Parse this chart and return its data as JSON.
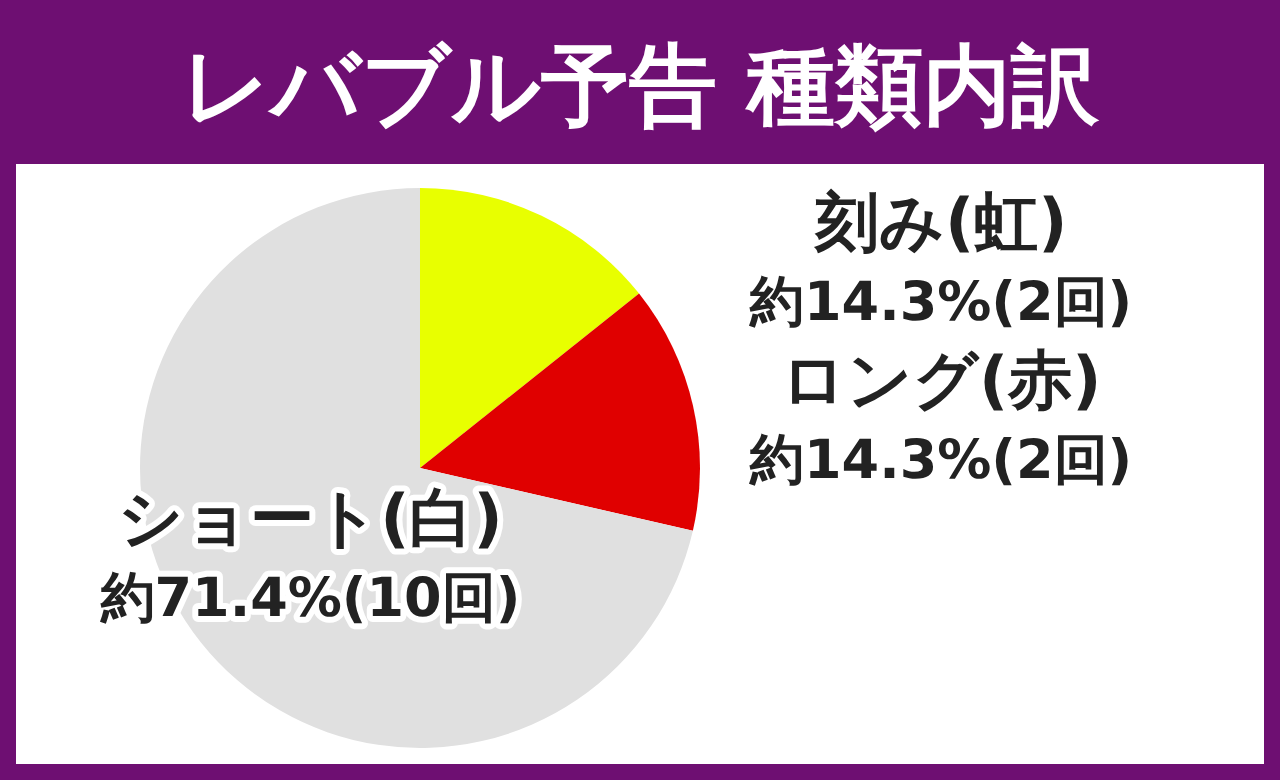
{
  "chart_data": {
    "type": "pie",
    "title": "レバブル予告 種類内訳",
    "categories": [
      "刻み(虹)",
      "ロング(赤)",
      "ショート(白)"
    ],
    "values": [
      14.3,
      14.3,
      71.4
    ],
    "colors": [
      "#e8ff00",
      "#e00000",
      "#e0e0e0"
    ],
    "value_labels": [
      "約14.3%(2回)",
      "約14.3%(2回)",
      "約71.4%(10回)"
    ]
  }
}
